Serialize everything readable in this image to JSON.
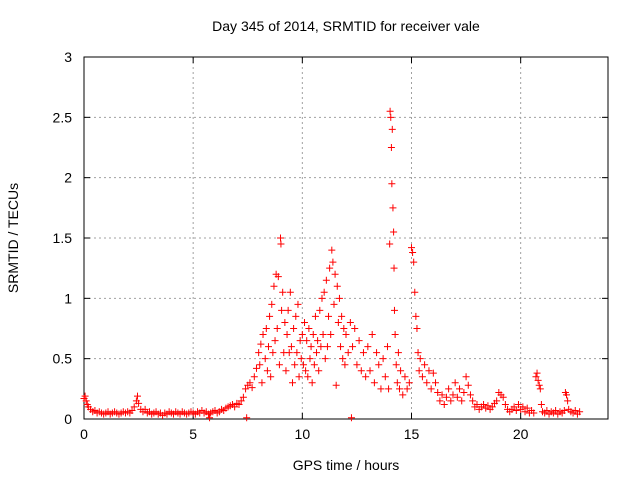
{
  "chart_data": {
    "type": "scatter",
    "title": "Day 345 of 2014, SRMTID for receiver vale",
    "xlabel": "GPS time / hours",
    "ylabel": "SRMTID / TECUs",
    "xlim": [
      0,
      24
    ],
    "ylim": [
      0,
      3
    ],
    "xticks": [
      0,
      5,
      10,
      15,
      20
    ],
    "yticks": [
      0,
      0.5,
      1,
      1.5,
      2,
      2.5,
      3
    ],
    "xtick_labels": [
      "0",
      "5",
      "10",
      "15",
      "20"
    ],
    "ytick_labels": [
      "0",
      "0.5",
      "1",
      "1.5",
      "2",
      "2.5",
      "3"
    ],
    "grid": true,
    "marker": "+",
    "color": "#ff0000",
    "series": [
      {
        "name": "SRMTID",
        "points": [
          [
            0.0,
            0.17
          ],
          [
            0.05,
            0.19
          ],
          [
            0.1,
            0.15
          ],
          [
            0.15,
            0.12
          ],
          [
            0.2,
            0.1
          ],
          [
            0.3,
            0.08
          ],
          [
            0.4,
            0.06
          ],
          [
            0.5,
            0.07
          ],
          [
            0.6,
            0.05
          ],
          [
            0.7,
            0.06
          ],
          [
            0.8,
            0.05
          ],
          [
            0.9,
            0.04
          ],
          [
            1.0,
            0.05
          ],
          [
            1.1,
            0.06
          ],
          [
            1.2,
            0.04
          ],
          [
            1.3,
            0.05
          ],
          [
            1.4,
            0.06
          ],
          [
            1.5,
            0.05
          ],
          [
            1.6,
            0.04
          ],
          [
            1.7,
            0.05
          ],
          [
            1.8,
            0.06
          ],
          [
            1.9,
            0.05
          ],
          [
            2.0,
            0.06
          ],
          [
            2.1,
            0.05
          ],
          [
            2.2,
            0.07
          ],
          [
            2.3,
            0.1
          ],
          [
            2.4,
            0.15
          ],
          [
            2.45,
            0.19
          ],
          [
            2.5,
            0.13
          ],
          [
            2.6,
            0.08
          ],
          [
            2.7,
            0.06
          ],
          [
            2.8,
            0.08
          ],
          [
            2.9,
            0.05
          ],
          [
            3.0,
            0.06
          ],
          [
            3.1,
            0.04
          ],
          [
            3.2,
            0.05
          ],
          [
            3.3,
            0.06
          ],
          [
            3.4,
            0.04
          ],
          [
            3.5,
            0.05
          ],
          [
            3.6,
            0.03
          ],
          [
            3.7,
            0.05
          ],
          [
            3.8,
            0.04
          ],
          [
            3.9,
            0.06
          ],
          [
            4.0,
            0.05
          ],
          [
            4.1,
            0.04
          ],
          [
            4.2,
            0.06
          ],
          [
            4.3,
            0.05
          ],
          [
            4.4,
            0.04
          ],
          [
            4.5,
            0.06
          ],
          [
            4.6,
            0.05
          ],
          [
            4.7,
            0.04
          ],
          [
            4.8,
            0.05
          ],
          [
            4.9,
            0.06
          ],
          [
            5.0,
            0.05
          ],
          [
            5.1,
            0.04
          ],
          [
            5.2,
            0.06
          ],
          [
            5.3,
            0.05
          ],
          [
            5.4,
            0.07
          ],
          [
            5.5,
            0.05
          ],
          [
            5.6,
            0.06
          ],
          [
            5.7,
            0.04
          ],
          [
            5.75,
            0.01
          ],
          [
            5.8,
            0.05
          ],
          [
            5.9,
            0.06
          ],
          [
            6.0,
            0.07
          ],
          [
            6.1,
            0.05
          ],
          [
            6.2,
            0.06
          ],
          [
            6.3,
            0.08
          ],
          [
            6.4,
            0.07
          ],
          [
            6.5,
            0.09
          ],
          [
            6.6,
            0.1
          ],
          [
            6.7,
            0.11
          ],
          [
            6.8,
            0.12
          ],
          [
            6.9,
            0.1
          ],
          [
            7.0,
            0.13
          ],
          [
            7.1,
            0.12
          ],
          [
            7.2,
            0.15
          ],
          [
            7.3,
            0.18
          ],
          [
            7.4,
            0.25
          ],
          [
            7.45,
            0.01
          ],
          [
            7.5,
            0.28
          ],
          [
            7.6,
            0.3
          ],
          [
            7.7,
            0.26
          ],
          [
            7.8,
            0.35
          ],
          [
            7.9,
            0.42
          ],
          [
            8.0,
            0.55
          ],
          [
            8.05,
            0.45
          ],
          [
            8.1,
            0.62
          ],
          [
            8.15,
            0.3
          ],
          [
            8.2,
            0.7
          ],
          [
            8.3,
            0.5
          ],
          [
            8.35,
            0.75
          ],
          [
            8.4,
            0.4
          ],
          [
            8.45,
            0.6
          ],
          [
            8.5,
            0.85
          ],
          [
            8.55,
            0.35
          ],
          [
            8.6,
            0.95
          ],
          [
            8.65,
            0.55
          ],
          [
            8.7,
            1.1
          ],
          [
            8.75,
            0.65
          ],
          [
            8.8,
            1.2
          ],
          [
            8.85,
            0.75
          ],
          [
            8.9,
            1.18
          ],
          [
            8.95,
            0.45
          ],
          [
            9.0,
            1.5
          ],
          [
            9.02,
            1.45
          ],
          [
            9.05,
            0.9
          ],
          [
            9.1,
            1.05
          ],
          [
            9.15,
            0.55
          ],
          [
            9.2,
            0.8
          ],
          [
            9.25,
            0.4
          ],
          [
            9.3,
            0.7
          ],
          [
            9.35,
            0.9
          ],
          [
            9.4,
            0.55
          ],
          [
            9.45,
            1.05
          ],
          [
            9.5,
            0.6
          ],
          [
            9.55,
            0.3
          ],
          [
            9.6,
            0.75
          ],
          [
            9.65,
            0.45
          ],
          [
            9.7,
            0.85
          ],
          [
            9.75,
            0.55
          ],
          [
            9.8,
            0.95
          ],
          [
            9.85,
            0.35
          ],
          [
            9.9,
            0.65
          ],
          [
            9.95,
            0.5
          ],
          [
            10.0,
            0.7
          ],
          [
            10.05,
            0.45
          ],
          [
            10.1,
            0.8
          ],
          [
            10.15,
            0.4
          ],
          [
            10.2,
            0.65
          ],
          [
            10.25,
            0.35
          ],
          [
            10.3,
            0.75
          ],
          [
            10.35,
            0.5
          ],
          [
            10.4,
            0.6
          ],
          [
            10.45,
            0.3
          ],
          [
            10.5,
            0.7
          ],
          [
            10.55,
            0.45
          ],
          [
            10.6,
            0.85
          ],
          [
            10.65,
            0.55
          ],
          [
            10.7,
            0.65
          ],
          [
            10.75,
            0.4
          ],
          [
            10.8,
            0.9
          ],
          [
            10.85,
            0.6
          ],
          [
            10.9,
            1.0
          ],
          [
            10.95,
            0.7
          ],
          [
            11.0,
            1.05
          ],
          [
            11.05,
            0.5
          ],
          [
            11.1,
            1.15
          ],
          [
            11.15,
            0.6
          ],
          [
            11.2,
            0.85
          ],
          [
            11.25,
            1.25
          ],
          [
            11.3,
            0.7
          ],
          [
            11.35,
            1.4
          ],
          [
            11.4,
            1.3
          ],
          [
            11.45,
            0.95
          ],
          [
            11.5,
            1.2
          ],
          [
            11.55,
            0.28
          ],
          [
            11.6,
            1.1
          ],
          [
            11.65,
            0.8
          ],
          [
            11.7,
            1.0
          ],
          [
            11.75,
            0.6
          ],
          [
            11.8,
            0.85
          ],
          [
            11.85,
            0.5
          ],
          [
            11.9,
            0.75
          ],
          [
            11.95,
            0.45
          ],
          [
            12.0,
            0.7
          ],
          [
            12.1,
            0.55
          ],
          [
            12.2,
            0.8
          ],
          [
            12.25,
            0.01
          ],
          [
            12.3,
            0.6
          ],
          [
            12.4,
            0.75
          ],
          [
            12.5,
            0.45
          ],
          [
            12.6,
            0.65
          ],
          [
            12.7,
            0.4
          ],
          [
            12.8,
            0.55
          ],
          [
            12.9,
            0.35
          ],
          [
            13.0,
            0.6
          ],
          [
            13.1,
            0.4
          ],
          [
            13.2,
            0.7
          ],
          [
            13.3,
            0.3
          ],
          [
            13.4,
            0.55
          ],
          [
            13.5,
            0.45
          ],
          [
            13.6,
            0.25
          ],
          [
            13.7,
            0.5
          ],
          [
            13.8,
            0.35
          ],
          [
            13.9,
            0.6
          ],
          [
            13.95,
            0.25
          ],
          [
            14.0,
            1.45
          ],
          [
            14.02,
            2.55
          ],
          [
            14.05,
            2.5
          ],
          [
            14.08,
            2.25
          ],
          [
            14.1,
            1.95
          ],
          [
            14.12,
            2.4
          ],
          [
            14.15,
            1.75
          ],
          [
            14.18,
            1.55
          ],
          [
            14.2,
            1.25
          ],
          [
            14.22,
            0.9
          ],
          [
            14.25,
            0.7
          ],
          [
            14.3,
            0.45
          ],
          [
            14.35,
            0.3
          ],
          [
            14.4,
            0.55
          ],
          [
            14.45,
            0.25
          ],
          [
            14.5,
            0.4
          ],
          [
            14.6,
            0.2
          ],
          [
            14.7,
            0.35
          ],
          [
            14.8,
            0.25
          ],
          [
            14.9,
            0.3
          ],
          [
            15.0,
            1.42
          ],
          [
            15.05,
            1.38
          ],
          [
            15.1,
            1.3
          ],
          [
            15.15,
            1.05
          ],
          [
            15.2,
            0.85
          ],
          [
            15.25,
            0.75
          ],
          [
            15.3,
            0.55
          ],
          [
            15.35,
            0.4
          ],
          [
            15.4,
            0.5
          ],
          [
            15.5,
            0.35
          ],
          [
            15.6,
            0.45
          ],
          [
            15.7,
            0.3
          ],
          [
            15.8,
            0.4
          ],
          [
            15.9,
            0.25
          ],
          [
            16.0,
            0.38
          ],
          [
            16.1,
            0.3
          ],
          [
            16.2,
            0.22
          ],
          [
            16.3,
            0.15
          ],
          [
            16.4,
            0.2
          ],
          [
            16.5,
            0.12
          ],
          [
            16.6,
            0.18
          ],
          [
            16.7,
            0.25
          ],
          [
            16.8,
            0.15
          ],
          [
            16.9,
            0.2
          ],
          [
            17.0,
            0.3
          ],
          [
            17.1,
            0.18
          ],
          [
            17.2,
            0.25
          ],
          [
            17.3,
            0.15
          ],
          [
            17.4,
            0.22
          ],
          [
            17.5,
            0.35
          ],
          [
            17.6,
            0.28
          ],
          [
            17.7,
            0.2
          ],
          [
            17.8,
            0.15
          ],
          [
            17.9,
            0.1
          ],
          [
            18.0,
            0.12
          ],
          [
            18.1,
            0.08
          ],
          [
            18.2,
            0.1
          ],
          [
            18.3,
            0.12
          ],
          [
            18.4,
            0.09
          ],
          [
            18.5,
            0.11
          ],
          [
            18.6,
            0.08
          ],
          [
            18.7,
            0.1
          ],
          [
            18.8,
            0.13
          ],
          [
            18.9,
            0.15
          ],
          [
            19.0,
            0.22
          ],
          [
            19.1,
            0.2
          ],
          [
            19.2,
            0.18
          ],
          [
            19.3,
            0.12
          ],
          [
            19.4,
            0.08
          ],
          [
            19.5,
            0.06
          ],
          [
            19.6,
            0.08
          ],
          [
            19.7,
            0.1
          ],
          [
            19.8,
            0.07
          ],
          [
            19.9,
            0.12
          ],
          [
            20.0,
            0.08
          ],
          [
            20.1,
            0.1
          ],
          [
            20.2,
            0.06
          ],
          [
            20.3,
            0.09
          ],
          [
            20.4,
            0.05
          ],
          [
            20.5,
            0.07
          ],
          [
            20.6,
            0.05
          ],
          [
            20.7,
            0.35
          ],
          [
            20.75,
            0.38
          ],
          [
            20.8,
            0.32
          ],
          [
            20.85,
            0.28
          ],
          [
            20.9,
            0.25
          ],
          [
            20.95,
            0.12
          ],
          [
            21.0,
            0.06
          ],
          [
            21.1,
            0.05
          ],
          [
            21.2,
            0.07
          ],
          [
            21.3,
            0.04
          ],
          [
            21.4,
            0.06
          ],
          [
            21.5,
            0.05
          ],
          [
            21.6,
            0.07
          ],
          [
            21.7,
            0.04
          ],
          [
            21.8,
            0.06
          ],
          [
            21.9,
            0.05
          ],
          [
            22.0,
            0.07
          ],
          [
            22.05,
            0.22
          ],
          [
            22.1,
            0.2
          ],
          [
            22.15,
            0.15
          ],
          [
            22.2,
            0.08
          ],
          [
            22.3,
            0.06
          ],
          [
            22.4,
            0.05
          ],
          [
            22.5,
            0.07
          ],
          [
            22.6,
            0.04
          ],
          [
            22.7,
            0.06
          ]
        ]
      }
    ]
  }
}
